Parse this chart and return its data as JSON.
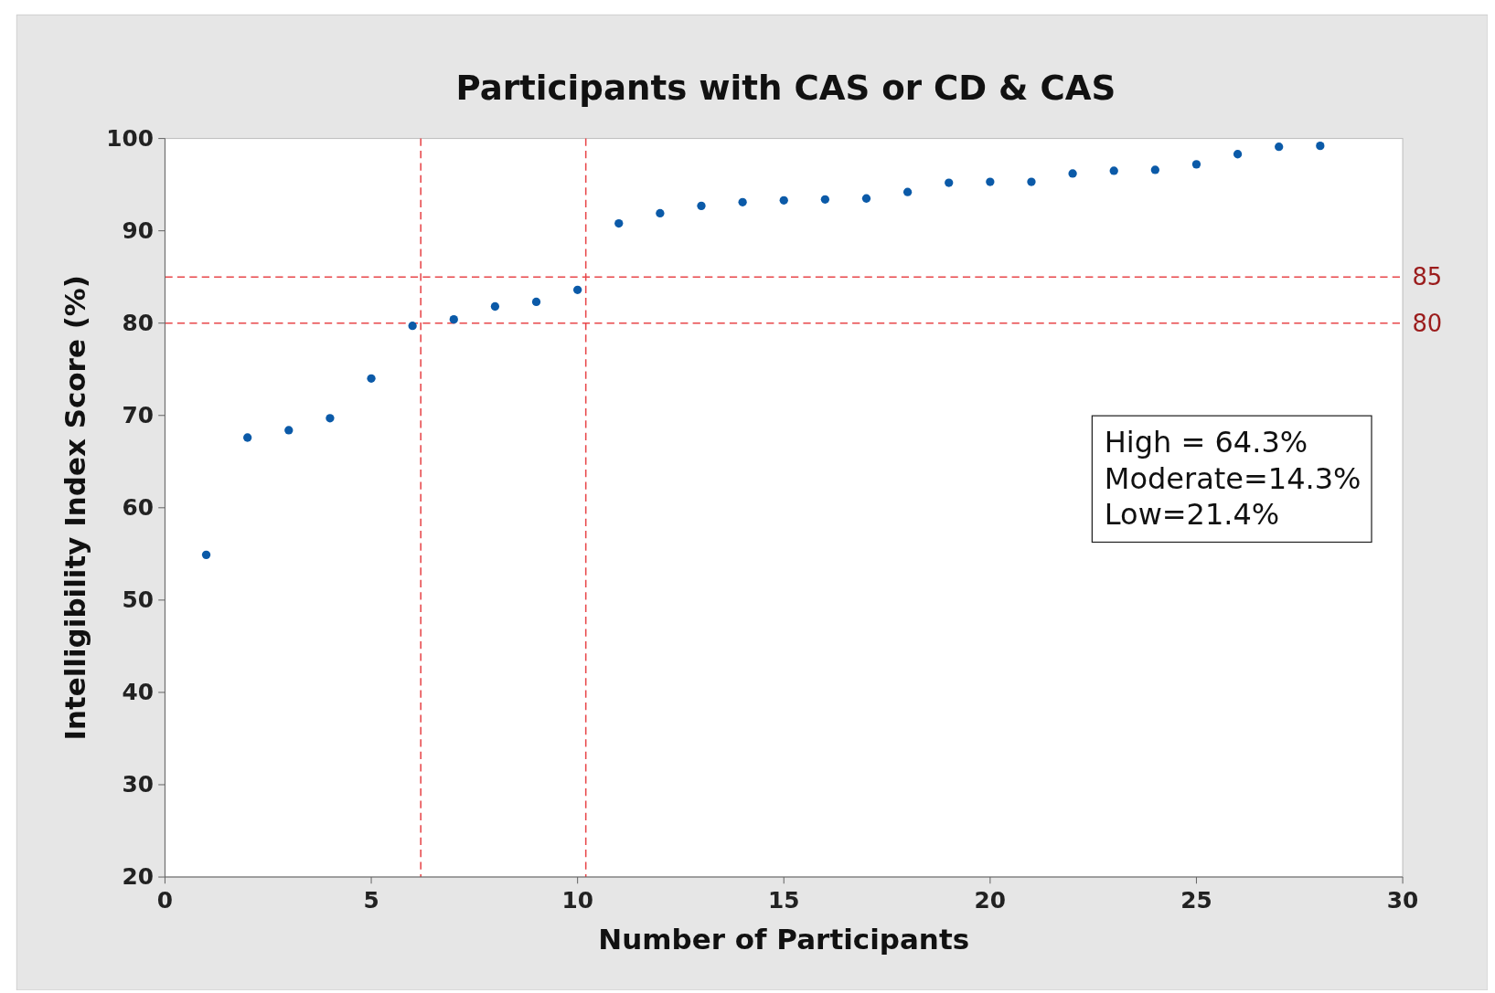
{
  "chart_data": {
    "type": "scatter",
    "title": "Participants with CAS or CD & CAS",
    "xlabel": "Number of Participants",
    "ylabel": "Intelligibility Index Score (%)",
    "x": [
      1,
      2,
      3,
      4,
      5,
      6,
      7,
      8,
      9,
      10,
      11,
      12,
      13,
      14,
      15,
      16,
      17,
      18,
      19,
      20,
      21,
      22,
      23,
      24,
      25,
      26,
      27,
      28
    ],
    "series": [
      {
        "color": "#0b5aa8",
        "values": [
          54.9,
          67.6,
          68.4,
          69.7,
          74.0,
          79.7,
          80.4,
          81.8,
          82.3,
          83.6,
          90.8,
          91.9,
          92.7,
          93.1,
          93.3,
          93.4,
          93.5,
          94.2,
          95.2,
          95.3,
          95.3,
          96.2,
          96.5,
          96.6,
          97.2,
          98.3,
          99.1,
          99.2
        ]
      }
    ],
    "xlim": [
      0,
      30
    ],
    "xticks": [
      0,
      5,
      10,
      15,
      20,
      25,
      30
    ],
    "ylim": [
      20,
      100
    ],
    "yticks": [
      20,
      30,
      40,
      50,
      60,
      70,
      80,
      90,
      100
    ],
    "grid": false,
    "marker": "circle",
    "ref_lines": [
      {
        "axis": "y",
        "value": 85,
        "label": "85",
        "color": "#e8474a",
        "line_style": "dashed"
      },
      {
        "axis": "y",
        "value": 80,
        "label": "80",
        "color": "#e8474a",
        "line_style": "dashed"
      },
      {
        "axis": "x",
        "value": 6.2,
        "label": null,
        "color": "#e8474a",
        "line_style": "dashed"
      },
      {
        "axis": "x",
        "value": 10.2,
        "label": null,
        "color": "#e8474a",
        "line_style": "dashed"
      }
    ],
    "annotations": [
      "High = 64.3%",
      "Moderate=14.3%",
      "Low=21.4%"
    ]
  }
}
